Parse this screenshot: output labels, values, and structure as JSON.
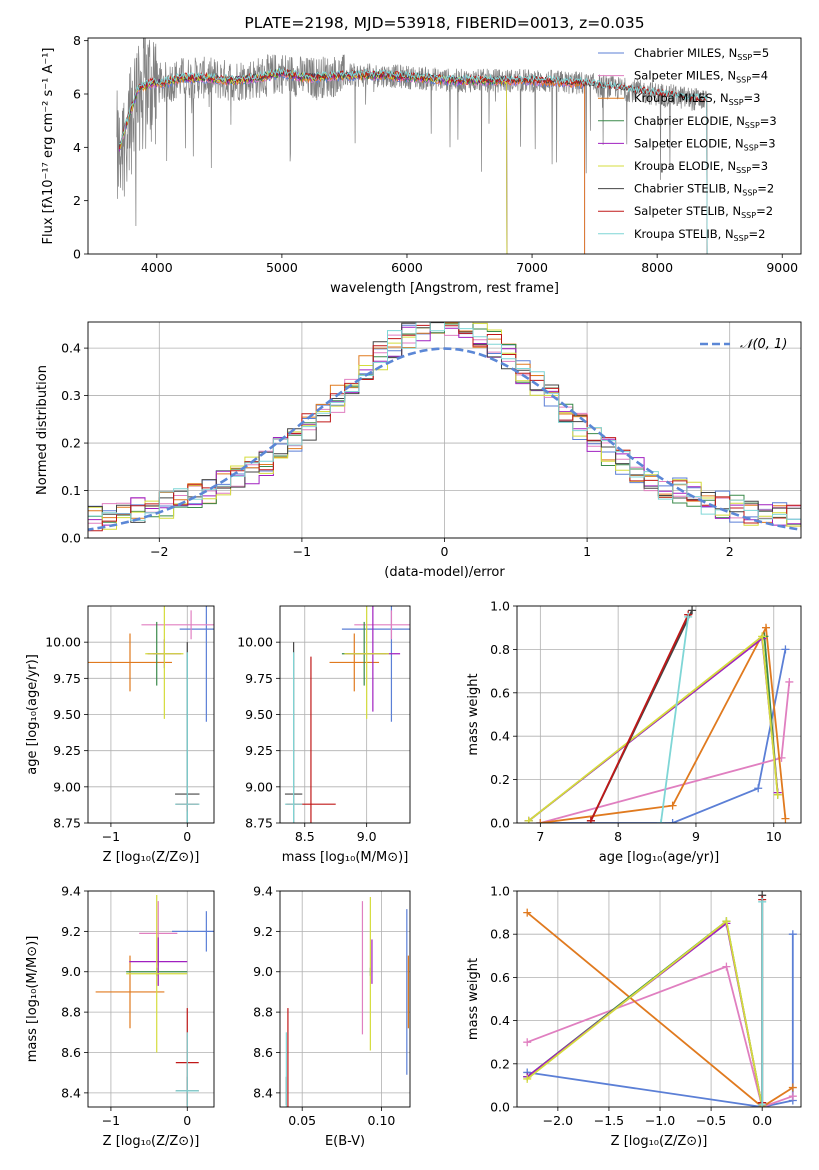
{
  "colors": {
    "Chabrier MILES": "#5b7fd6",
    "Salpeter MILES": "#e07fc0",
    "Kroupa MILES": "#e07a1f",
    "Chabrier ELODIE": "#3a8a4a",
    "Salpeter ELODIE": "#a020c0",
    "Kroupa ELODIE": "#d4dc3c",
    "Chabrier STELIB": "#444444",
    "Salpeter STELIB": "#c01818",
    "Kroupa STELIB": "#7fd6d6",
    "data": "#808080",
    "gaussian": "#5b87d6",
    "grid": "#b0b0b0"
  },
  "chart_data": [
    {
      "id": "spectrum",
      "type": "line",
      "title": "PLATE=2198, MJD=53918, FIBERID=0013, z=0.035",
      "xlabel": "wavelength [Angstrom, rest frame]",
      "ylabel": "Flux [fλ10⁻¹⁷ erg cm⁻² s⁻¹ A⁻¹]",
      "xlim": [
        3450,
        9150
      ],
      "ylim": [
        0,
        8.1
      ],
      "xticks": [
        4000,
        5000,
        6000,
        7000,
        8000,
        9000
      ],
      "yticks": [
        0,
        2,
        4,
        6,
        8
      ],
      "legend_position": "top-right",
      "legend": [
        {
          "name": "Chabrier MILES",
          "suffix": "=5"
        },
        {
          "name": "Salpeter MILES",
          "suffix": "=4"
        },
        {
          "name": "Kroupa MILES",
          "suffix": "=3"
        },
        {
          "name": "Chabrier ELODIE",
          "suffix": "=3"
        },
        {
          "name": "Salpeter ELODIE",
          "suffix": "=3"
        },
        {
          "name": "Kroupa ELODIE",
          "suffix": "=3"
        },
        {
          "name": "Chabrier STELIB",
          "suffix": "=2"
        },
        {
          "name": "Salpeter STELIB",
          "suffix": "=2"
        },
        {
          "name": "Kroupa STELIB",
          "suffix": "=2"
        }
      ],
      "legend_nssp_label": "N",
      "legend_nssp_sub": "SSP",
      "continuum": {
        "x": [
          3680,
          3750,
          3850,
          3950,
          4050,
          4200,
          4400,
          4600,
          4800,
          5000,
          5200,
          5500,
          5800,
          6100,
          6400,
          6700,
          7000,
          7400,
          7700,
          8000,
          8300,
          8600,
          9000
        ],
        "y": [
          3.6,
          4.8,
          6.2,
          6.4,
          6.4,
          6.6,
          6.6,
          6.5,
          6.6,
          6.8,
          6.6,
          6.7,
          6.7,
          6.6,
          6.5,
          6.5,
          6.5,
          6.4,
          6.2,
          6.0,
          5.8,
          5.7,
          5.4
        ]
      },
      "model_ranges": {
        "Chabrier MILES": [
          3700,
          7420
        ],
        "Salpeter MILES": [
          3700,
          7420
        ],
        "Kroupa MILES": [
          3700,
          7420
        ],
        "Chabrier ELODIE": [
          3700,
          6800
        ],
        "Salpeter ELODIE": [
          3700,
          6800
        ],
        "Kroupa ELODIE": [
          3700,
          6800
        ],
        "Chabrier STELIB": [
          3700,
          8400
        ],
        "Salpeter STELIB": [
          3700,
          8400
        ],
        "Kroupa STELIB": [
          3700,
          8400
        ]
      }
    },
    {
      "id": "residuals",
      "type": "histogram",
      "xlabel": "(data-model)/error",
      "ylabel": "Normed distribution",
      "xlim": [
        -2.5,
        2.5
      ],
      "ylim": [
        0,
        0.455
      ],
      "xticks": [
        -2,
        -1,
        0,
        1,
        2
      ],
      "yticks": [
        0.0,
        0.1,
        0.2,
        0.3,
        0.4
      ],
      "legend_position": "top-right",
      "gaussian_label": "𝒩(0, 1)",
      "bin_width": 0.1
    },
    {
      "id": "age_vs_Z",
      "type": "errorbar",
      "xlabel": "Z [log₁₀(Z/Z⊙)]",
      "ylabel": "age  [log₁₀(age/yr)]",
      "xlim": [
        -1.3,
        0.35
      ],
      "ylim": [
        8.75,
        10.25
      ],
      "xticks": [
        -1,
        0
      ],
      "yticks": [
        8.75,
        9.0,
        9.25,
        9.5,
        9.75,
        10.0
      ],
      "points": [
        {
          "model": "Chabrier MILES",
          "x": 0.25,
          "xerr": 0.35,
          "y": 10.09,
          "yerr": 0.64
        },
        {
          "model": "Salpeter MILES",
          "x": 0.05,
          "xerr": 0.65,
          "y": 10.12,
          "yerr": 0.1
        },
        {
          "model": "Kroupa MILES",
          "x": -0.75,
          "xerr": 0.55,
          "y": 9.86,
          "yerr": 0.2
        },
        {
          "model": "Chabrier ELODIE",
          "x": -0.4,
          "xerr": 0.05,
          "y": 9.92,
          "yerr": 0.22
        },
        {
          "model": "Salpeter ELODIE",
          "x": -0.3,
          "xerr": 0.22,
          "y": 9.92,
          "yerr": 0.1
        },
        {
          "model": "Kroupa ELODIE",
          "x": -0.3,
          "xerr": 0.25,
          "y": 9.92,
          "yerr": 0.45
        },
        {
          "model": "Chabrier STELIB",
          "x": 0.0,
          "xerr": 0.16,
          "y": 8.95,
          "yerr": 1.05
        },
        {
          "model": "Salpeter STELIB",
          "x": 0.0,
          "xerr": 0.15,
          "y": 8.88,
          "yerr": 0.05
        },
        {
          "model": "Kroupa STELIB",
          "x": 0.0,
          "xerr": 0.16,
          "y": 8.88,
          "yerr": 1.05
        }
      ]
    },
    {
      "id": "age_vs_mass",
      "type": "errorbar",
      "xlabel": "mass [log₁₀(M/M⊙)]",
      "ylabel": "",
      "xlim": [
        8.3,
        9.35
      ],
      "ylim": [
        8.75,
        10.25
      ],
      "xticks": [
        8.5,
        9.0
      ],
      "yticks": [
        8.75,
        9.0,
        9.25,
        9.5,
        9.75,
        10.0
      ],
      "points": [
        {
          "model": "Chabrier MILES",
          "x": 9.2,
          "xerr": 0.4,
          "y": 10.09,
          "yerr": 0.64
        },
        {
          "model": "Salpeter MILES",
          "x": 9.2,
          "xerr": 0.3,
          "y": 10.12,
          "yerr": 0.1
        },
        {
          "model": "Kroupa MILES",
          "x": 8.9,
          "xerr": 0.2,
          "y": 9.86,
          "yerr": 0.2
        },
        {
          "model": "Chabrier ELODIE",
          "x": 8.98,
          "xerr": 0.18,
          "y": 9.92,
          "yerr": 0.22
        },
        {
          "model": "Salpeter ELODIE",
          "x": 9.05,
          "xerr": 0.22,
          "y": 9.92,
          "yerr": 0.4
        },
        {
          "model": "Kroupa ELODIE",
          "x": 9.0,
          "xerr": 0.18,
          "y": 9.92,
          "yerr": 0.45
        },
        {
          "model": "Chabrier STELIB",
          "x": 8.41,
          "xerr": 0.07,
          "y": 8.95,
          "yerr": 1.05
        },
        {
          "model": "Salpeter STELIB",
          "x": 8.55,
          "xerr": 0.2,
          "y": 8.88,
          "yerr": 1.02
        },
        {
          "model": "Kroupa STELIB",
          "x": 8.41,
          "xerr": 0.07,
          "y": 8.88,
          "yerr": 1.05
        }
      ]
    },
    {
      "id": "mass_weight_vs_age",
      "type": "line",
      "xlabel": "age  [log₁₀(age/yr)]",
      "ylabel": "mass weight",
      "xlim": [
        6.7,
        10.35
      ],
      "ylim": [
        0,
        1.0
      ],
      "xticks": [
        7,
        8,
        9,
        10
      ],
      "yticks": [
        0.0,
        0.2,
        0.4,
        0.6,
        0.8,
        1.0
      ],
      "series": [
        {
          "model": "Chabrier MILES",
          "x": [
            7.0,
            8.7,
            9.8,
            10.15
          ],
          "y": [
            0.0,
            0.0,
            0.16,
            0.8
          ]
        },
        {
          "model": "Salpeter MILES",
          "x": [
            7.0,
            10.1,
            10.2
          ],
          "y": [
            0.0,
            0.3,
            0.65
          ]
        },
        {
          "model": "Kroupa MILES",
          "x": [
            7.0,
            8.7,
            9.9,
            10.15
          ],
          "y": [
            0.0,
            0.08,
            0.9,
            0.02
          ]
        },
        {
          "model": "Chabrier ELODIE",
          "x": [
            6.85,
            9.88,
            10.05
          ],
          "y": [
            0.01,
            0.86,
            0.13
          ]
        },
        {
          "model": "Salpeter ELODIE",
          "x": [
            6.85,
            9.85,
            10.05
          ],
          "y": [
            0.01,
            0.85,
            0.14
          ]
        },
        {
          "model": "Kroupa ELODIE",
          "x": [
            6.85,
            9.85,
            10.05
          ],
          "y": [
            0.01,
            0.86,
            0.13
          ]
        },
        {
          "model": "Chabrier STELIB",
          "x": [
            7.65,
            8.95
          ],
          "y": [
            0.01,
            0.98
          ]
        },
        {
          "model": "Salpeter STELIB",
          "x": [
            7.65,
            8.9
          ],
          "y": [
            0.01,
            0.96
          ]
        },
        {
          "model": "Kroupa STELIB",
          "x": [
            8.55,
            8.9
          ],
          "y": [
            0.0,
            0.95
          ]
        }
      ]
    },
    {
      "id": "mass_vs_Z",
      "type": "errorbar",
      "xlabel": "Z [log₁₀(Z/Z⊙)]",
      "ylabel": "mass [log₁₀(M/M⊙)]",
      "xlim": [
        -1.3,
        0.35
      ],
      "ylim": [
        8.33,
        9.4
      ],
      "xticks": [
        -1,
        0
      ],
      "yticks": [
        8.4,
        8.6,
        8.8,
        9.0,
        9.2,
        9.4
      ],
      "points": [
        {
          "model": "Chabrier MILES",
          "x": 0.25,
          "xerr": 0.45,
          "y": 9.2,
          "yerr": 0.1
        },
        {
          "model": "Salpeter MILES",
          "x": -0.38,
          "xerr": 0.25,
          "y": 9.19,
          "yerr": 0.16
        },
        {
          "model": "Kroupa MILES",
          "x": -0.75,
          "xerr": 0.45,
          "y": 8.9,
          "yerr": 0.18
        },
        {
          "model": "Chabrier ELODIE",
          "x": -0.4,
          "xerr": 0.4,
          "y": 9.0,
          "yerr": 0.02
        },
        {
          "model": "Salpeter ELODIE",
          "x": -0.38,
          "xerr": 0.38,
          "y": 9.05,
          "yerr": 0.12
        },
        {
          "model": "Kroupa ELODIE",
          "x": -0.4,
          "xerr": 0.4,
          "y": 8.99,
          "yerr": 0.39
        },
        {
          "model": "Chabrier STELIB",
          "x": 0.0,
          "xerr": 0.15,
          "y": 8.41,
          "yerr": 0.07
        },
        {
          "model": "Salpeter STELIB",
          "x": 0.0,
          "xerr": 0.15,
          "y": 8.55,
          "yerr": 0.27
        },
        {
          "model": "Kroupa STELIB",
          "x": 0.0,
          "xerr": 0.15,
          "y": 8.41,
          "yerr": 0.29
        }
      ]
    },
    {
      "id": "mass_vs_ebv",
      "type": "errorbar",
      "xlabel": "E(B-V)",
      "ylabel": "",
      "xlim": [
        0.036,
        0.118
      ],
      "ylim": [
        8.33,
        9.4
      ],
      "xticks": [
        0.05,
        0.1
      ],
      "yticks": [
        8.4,
        8.6,
        8.8,
        9.0,
        9.2,
        9.4
      ],
      "points": [
        {
          "model": "Chabrier MILES",
          "x": 0.116,
          "xerr": 0.0,
          "y": 8.9,
          "yerr": 0.41
        },
        {
          "model": "Salpeter MILES",
          "x": 0.088,
          "xerr": 0.0,
          "y": 9.02,
          "yerr": 0.33
        },
        {
          "model": "Kroupa MILES",
          "x": 0.117,
          "xerr": 0.0,
          "y": 8.9,
          "yerr": 0.18
        },
        {
          "model": "Chabrier ELODIE",
          "x": 0.093,
          "xerr": 0.0,
          "y": 9.0,
          "yerr": 0.02
        },
        {
          "model": "Salpeter ELODIE",
          "x": 0.094,
          "xerr": 0.0,
          "y": 9.05,
          "yerr": 0.11
        },
        {
          "model": "Kroupa ELODIE",
          "x": 0.093,
          "xerr": 0.0,
          "y": 8.99,
          "yerr": 0.38
        },
        {
          "model": "Chabrier STELIB",
          "x": 0.04,
          "xerr": 0.0,
          "y": 8.41,
          "yerr": 0.07
        },
        {
          "model": "Salpeter STELIB",
          "x": 0.041,
          "xerr": 0.0,
          "y": 8.55,
          "yerr": 0.27
        },
        {
          "model": "Kroupa STELIB",
          "x": 0.04,
          "xerr": 0.0,
          "y": 8.41,
          "yerr": 0.29
        }
      ]
    },
    {
      "id": "mass_weight_vs_Z",
      "type": "line",
      "xlabel": "Z [log₁₀(Z/Z⊙)]",
      "ylabel": "mass weight",
      "xlim": [
        -2.4,
        0.38
      ],
      "ylim": [
        0,
        1.0
      ],
      "xticks": [
        -2.0,
        -1.5,
        -1.0,
        -0.5,
        0.0
      ],
      "yticks": [
        0.0,
        0.2,
        0.4,
        0.6,
        0.8,
        1.0
      ],
      "series": [
        {
          "model": "Chabrier MILES",
          "x": [
            -2.3,
            0.0,
            0.3,
            0.3
          ],
          "y": [
            0.16,
            0.0,
            0.03,
            0.8
          ]
        },
        {
          "model": "Salpeter MILES",
          "x": [
            -2.3,
            -0.35,
            0.0,
            0.3
          ],
          "y": [
            0.3,
            0.65,
            0.0,
            0.05
          ]
        },
        {
          "model": "Kroupa MILES",
          "x": [
            -2.3,
            0.0,
            0.3
          ],
          "y": [
            0.9,
            0.0,
            0.09
          ]
        },
        {
          "model": "Chabrier ELODIE",
          "x": [
            -2.3,
            -0.35,
            0.0
          ],
          "y": [
            0.14,
            0.86,
            0.0
          ]
        },
        {
          "model": "Salpeter ELODIE",
          "x": [
            -2.3,
            -0.35,
            0.0
          ],
          "y": [
            0.14,
            0.85,
            0.0
          ]
        },
        {
          "model": "Kroupa ELODIE",
          "x": [
            -2.3,
            -0.35,
            0.0
          ],
          "y": [
            0.13,
            0.86,
            0.0
          ]
        },
        {
          "model": "Chabrier STELIB",
          "x": [
            0.0,
            0.0
          ],
          "y": [
            0.02,
            0.98
          ]
        },
        {
          "model": "Salpeter STELIB",
          "x": [
            0.0,
            0.0
          ],
          "y": [
            0.02,
            0.96
          ]
        },
        {
          "model": "Kroupa STELIB",
          "x": [
            0.0,
            0.0
          ],
          "y": [
            0.01,
            0.95
          ]
        }
      ]
    }
  ]
}
